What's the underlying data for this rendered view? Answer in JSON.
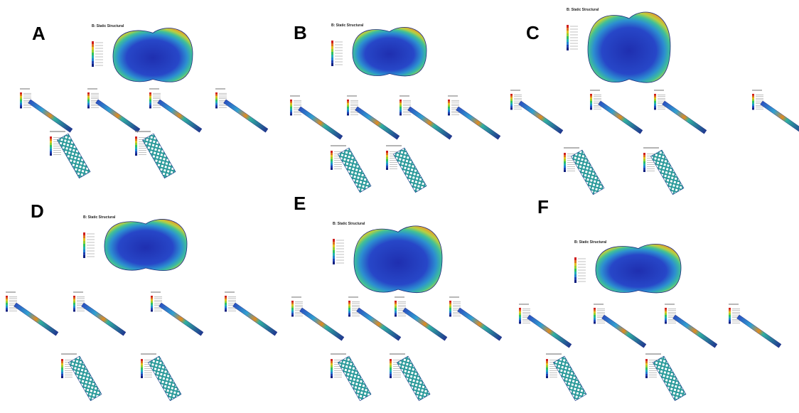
{
  "panels": [
    {
      "label": "A",
      "tray_title": "B: Static Structural"
    },
    {
      "label": "B",
      "tray_title": "B: Static Structural"
    },
    {
      "label": "C",
      "tray_title": "B: Static Structural"
    },
    {
      "label": "D",
      "tray_title": "B: Static Structural"
    },
    {
      "label": "E",
      "tray_title": "B: Static Structural"
    },
    {
      "label": "F",
      "tray_title": "B: Static Structural"
    }
  ]
}
